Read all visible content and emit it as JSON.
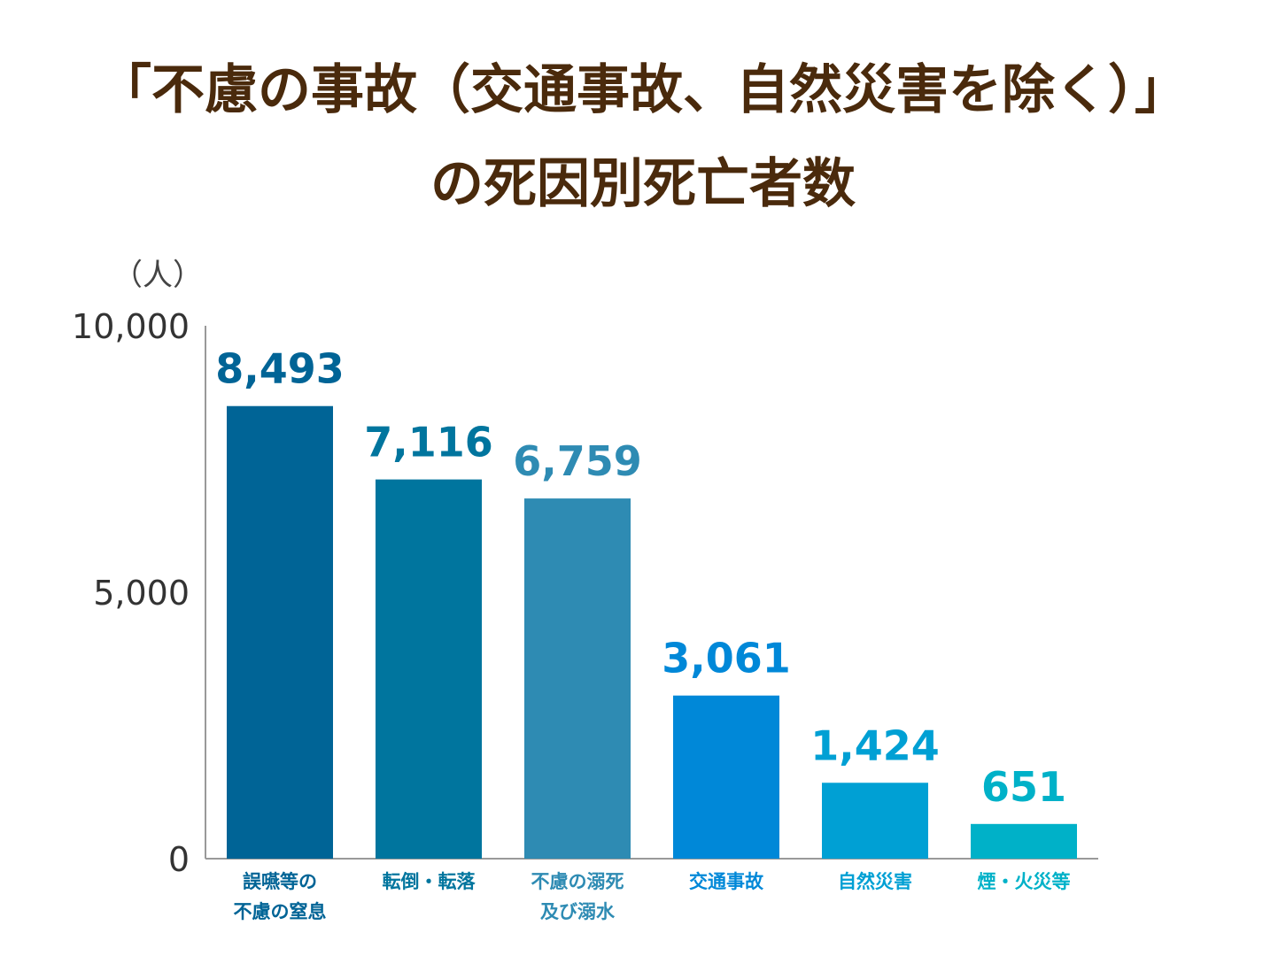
{
  "title": {
    "line1": "「不慮の事故（交通事故、自然災害を除く）」",
    "line2": "の死因別死亡者数"
  },
  "chart_data": {
    "type": "bar",
    "unit_label": "（人）",
    "ylim": [
      0,
      10000
    ],
    "yticks": [
      "0",
      "5,000",
      "10,000"
    ],
    "ytick_values": [
      0,
      5000,
      10000
    ],
    "grid": false,
    "categories": [
      [
        "誤嚥等の",
        "不慮の窒息"
      ],
      [
        "転倒・転落"
      ],
      [
        "不慮の溺死",
        "及び溺水"
      ],
      [
        "交通事故"
      ],
      [
        "自然災害"
      ],
      [
        "煙・火災等"
      ]
    ],
    "values": [
      8493,
      7116,
      6759,
      3061,
      1424,
      651
    ],
    "value_labels": [
      "8,493",
      "7,116",
      "6,759",
      "3,061",
      "1,424",
      "651"
    ],
    "colors": [
      "#006496",
      "#00759e",
      "#2e8bb3",
      "#0088d8",
      "#00a0d4",
      "#00b1c8"
    ]
  }
}
